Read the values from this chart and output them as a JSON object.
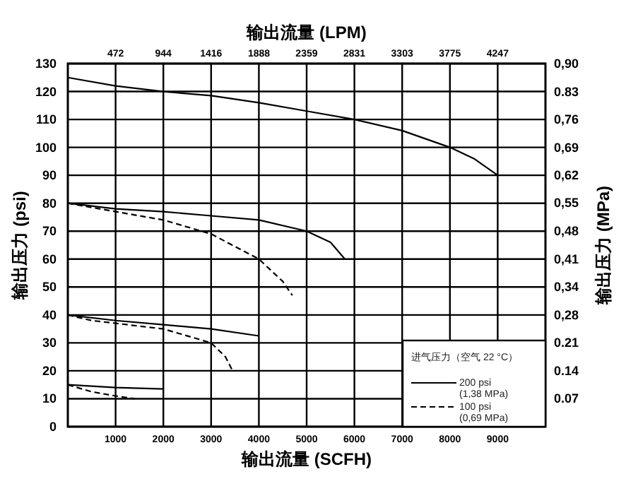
{
  "chart_data": {
    "type": "line",
    "xlabel": "输出流量 (SCFH)",
    "x2label": "输出流量 (LPM)",
    "ylabel": "输出压力 (psi)",
    "y2label": "输出压力 (MPa)",
    "legend_title": "进气压力（空气 22 °C）",
    "xlim": [
      0,
      10000
    ],
    "xticks": [
      1000,
      2000,
      3000,
      4000,
      5000,
      6000,
      7000,
      8000,
      9000
    ],
    "x2lim": [
      0,
      4719
    ],
    "x2ticks": [
      472,
      944,
      1416,
      1888,
      2359,
      2831,
      3303,
      3775,
      4247
    ],
    "ylim": [
      0,
      130
    ],
    "yticks": [
      0,
      10,
      20,
      30,
      40,
      50,
      60,
      70,
      80,
      90,
      100,
      110,
      120,
      130
    ],
    "y2lim": [
      0,
      0.896
    ],
    "y2ticks": [
      {
        "value": 0.069,
        "label": "0.07"
      },
      {
        "value": 0.138,
        "label": "0.14"
      },
      {
        "value": 0.207,
        "label": "0.21"
      },
      {
        "value": 0.276,
        "label": "0,28"
      },
      {
        "value": 0.345,
        "label": "0,34"
      },
      {
        "value": 0.414,
        "label": "0,41"
      },
      {
        "value": 0.483,
        "label": "0,48"
      },
      {
        "value": 0.552,
        "label": "0,55"
      },
      {
        "value": 0.621,
        "label": "0,62"
      },
      {
        "value": 0.689,
        "label": "0,69"
      },
      {
        "value": 0.758,
        "label": "0,76"
      },
      {
        "value": 0.827,
        "label": "0.83"
      },
      {
        "value": 0.896,
        "label": "0,90"
      }
    ],
    "grid": true,
    "legend": "bottom right",
    "marker": "none",
    "series": [
      {
        "name": "200 psi\n(1,38 MPa)",
        "color": "#000000",
        "line_style": "solid",
        "x": [
          0,
          1000,
          2000,
          3000,
          4000,
          5000,
          6000,
          7000,
          8000,
          8500,
          9000
        ],
        "values": [
          125,
          122,
          120,
          118.5,
          116,
          113,
          110,
          106,
          100,
          96,
          90
        ]
      },
      {
        "name": "100 psi\n(0,69 MPa)",
        "color": "#000000",
        "line_style": "dashed",
        "x": [
          0,
          1000,
          2000,
          3000,
          4000,
          4500,
          4700
        ],
        "values": [
          80,
          77,
          74,
          69,
          60,
          52,
          47
        ]
      },
      {
        "color": "#000000",
        "line_style": "solid",
        "x": [
          0,
          1000,
          2000,
          3000,
          4000,
          5000,
          5500,
          5800
        ],
        "values": [
          80,
          78,
          77,
          75.5,
          74,
          70,
          66,
          60
        ]
      },
      {
        "color": "#000000",
        "line_style": "solid",
        "x": [
          0,
          1000,
          2000,
          3000,
          4000
        ],
        "values": [
          40,
          38,
          36.5,
          35,
          32.5
        ]
      },
      {
        "color": "#000000",
        "line_style": "dashed",
        "x": [
          0,
          500,
          1000,
          2000,
          3000,
          3300,
          3450
        ],
        "values": [
          40,
          38,
          37,
          35,
          30,
          25,
          20
        ]
      },
      {
        "color": "#000000",
        "line_style": "solid",
        "x": [
          0,
          1000,
          2000
        ],
        "values": [
          15,
          14,
          13.5
        ]
      },
      {
        "color": "#000000",
        "line_style": "dashed",
        "x": [
          0,
          500,
          1000,
          1400
        ],
        "values": [
          15,
          12.5,
          11,
          10
        ]
      }
    ]
  }
}
